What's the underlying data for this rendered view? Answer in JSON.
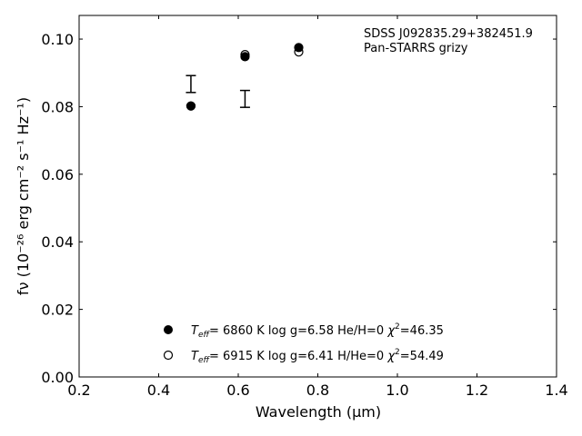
{
  "chart_data": {
    "type": "scatter",
    "title": "",
    "xlabel": "Wavelength (μm)",
    "ylabel": "fν (10⁻²⁶ erg cm⁻² s⁻¹ Hz⁻¹)",
    "xlim": [
      0.2,
      1.4
    ],
    "ylim": [
      0.0,
      0.107
    ],
    "x_ticks": [
      0.2,
      0.4,
      0.6,
      0.8,
      1.0,
      1.2,
      1.4
    ],
    "y_ticks": [
      0.0,
      0.02,
      0.04,
      0.06,
      0.08,
      0.1
    ],
    "x_tick_labels": [
      "0.2",
      "0.4",
      "0.6",
      "0.8",
      "1.0",
      "1.2",
      "1.4"
    ],
    "y_tick_labels": [
      "0.00",
      "0.02",
      "0.04",
      "0.06",
      "0.08",
      "0.10"
    ],
    "annotations": [
      "SDSS J092835.29+382451.9",
      "Pan-STARRS grizy"
    ],
    "observed": {
      "x": [
        0.481,
        0.617
      ],
      "y": [
        0.0867,
        0.0823
      ],
      "yerr": [
        0.0025,
        0.0025
      ]
    },
    "series": [
      {
        "legend": {
          "teff": "6860 K",
          "logg": "log g=6.58",
          "comp": "He/H=0",
          "chi": "=46.35"
        },
        "marker": "filled-circle",
        "x": [
          0.481,
          0.617,
          0.752
        ],
        "y": [
          0.0802,
          0.0948,
          0.0975
        ]
      },
      {
        "legend": {
          "teff": "6915 K",
          "logg": "log g=6.41",
          "comp": "H/He=0",
          "chi": "=54.49"
        },
        "marker": "open-circle",
        "x": [
          0.481,
          0.617,
          0.752
        ],
        "y": [
          0.0802,
          0.0954,
          0.0962
        ]
      }
    ],
    "legend_position": "bottom-center",
    "grid": false
  }
}
